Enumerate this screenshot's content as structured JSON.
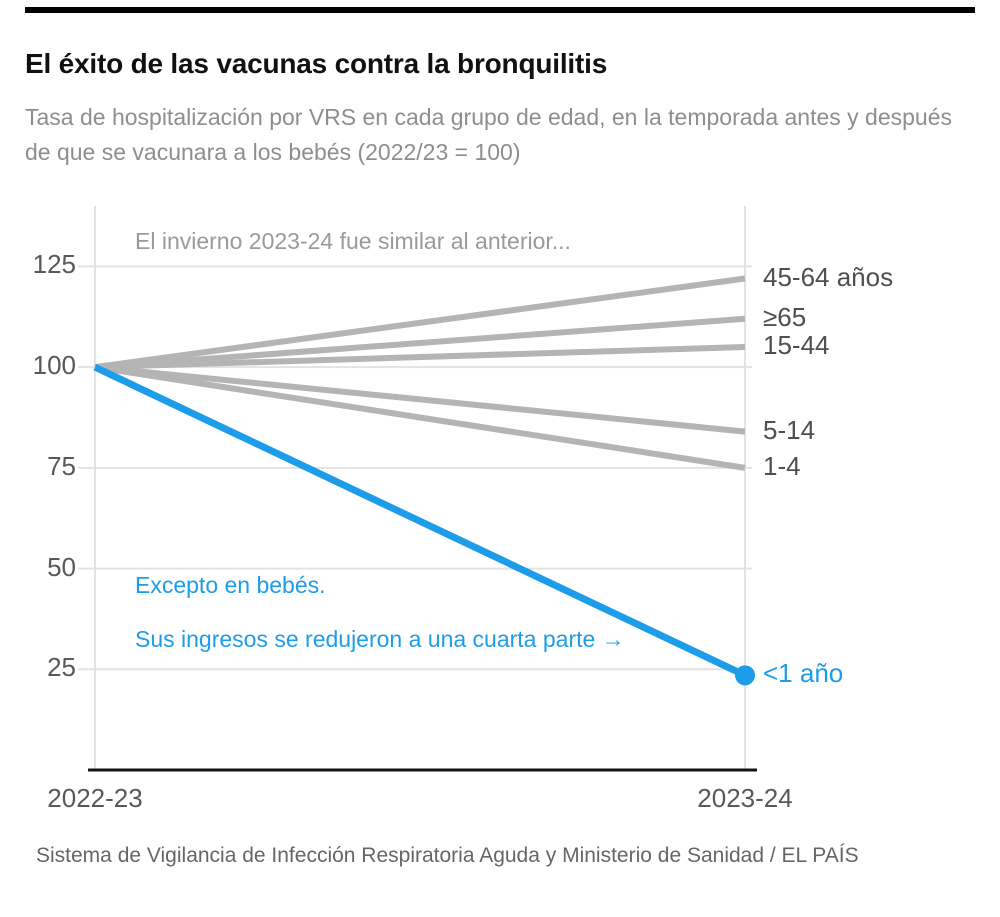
{
  "header": {
    "title": "El éxito de las vacunas contra la bronquilitis",
    "subtitle": "Tasa de hospitalización por VRS en cada grupo de edad, en la temporada antes y después de que se vacunara a los bebés (2022/23 = 100)"
  },
  "source": "Sistema de Vigilancia de Infección Respiratoria Aguda y Ministerio de Sanidad / EL PAÍS",
  "chart_data": {
    "type": "line",
    "title": "El éxito de las vacunas contra la bronquilitis",
    "x": [
      "2022-23",
      "2023-24"
    ],
    "yticks": [
      125,
      100,
      75,
      50,
      25
    ],
    "ylim": [
      0,
      140
    ],
    "grid": true,
    "legend_position": "right-labels",
    "series": [
      {
        "name": "45-64 años",
        "values": [
          100,
          122
        ]
      },
      {
        "name": "≥65",
        "values": [
          100,
          112
        ]
      },
      {
        "name": "15-44",
        "values": [
          100,
          105
        ]
      },
      {
        "name": "5-14",
        "values": [
          100,
          84
        ]
      },
      {
        "name": "1-4",
        "values": [
          100,
          75
        ]
      },
      {
        "name": "<1 año",
        "values": [
          100,
          23.5
        ],
        "highlight": true
      }
    ],
    "colors": {
      "default": "#b4b4b4",
      "highlight": "#1d9de9",
      "grid": "#e3e3e3",
      "axis": "#141414"
    },
    "annotations": [
      {
        "text": "El invierno 2023-24 fue similar al anterior...",
        "color": "gray"
      },
      {
        "text": "Excepto en bebés.",
        "color": "blue"
      },
      {
        "text": "Sus ingresos se redujeron a una cuarta parte →",
        "color": "blue"
      }
    ]
  }
}
